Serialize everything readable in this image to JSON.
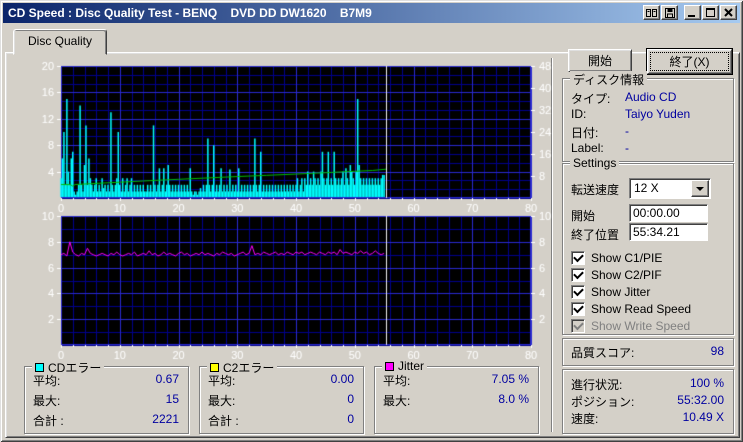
{
  "window": {
    "title": "CD Speed : Disc Quality Test - BENQ    DVD DD DW1620    B7M9"
  },
  "tab": {
    "label": "Disc Quality"
  },
  "buttons": {
    "start": "開始",
    "exit": "終了(X)"
  },
  "disc_info": {
    "title": "ディスク情報",
    "rows": [
      {
        "label": "タイプ:",
        "value": "Audio CD"
      },
      {
        "label": "ID:",
        "value": "Taiyo Yuden"
      },
      {
        "label": "日付:",
        "value": "-"
      },
      {
        "label": "Label:",
        "value": "-"
      }
    ]
  },
  "settings": {
    "title": "Settings",
    "speed_label": "転送速度",
    "speed_value": "12 X",
    "start_label": "開始",
    "start_value": "00:00.00",
    "end_label": "終了位置",
    "end_value": "55:34.21",
    "checkboxes": [
      {
        "label": "Show C1/PIE",
        "checked": true,
        "enabled": true
      },
      {
        "label": "Show C2/PIF",
        "checked": true,
        "enabled": true
      },
      {
        "label": "Show Jitter",
        "checked": true,
        "enabled": true
      },
      {
        "label": "Show Read Speed",
        "checked": true,
        "enabled": true
      },
      {
        "label": "Show Write Speed",
        "checked": true,
        "enabled": false
      }
    ]
  },
  "quality": {
    "label": "品質スコア:",
    "value": "98"
  },
  "progress": {
    "rows": [
      {
        "label": "進行状況:",
        "value": "100 %"
      },
      {
        "label": "ポジション:",
        "value": "55:32.00"
      },
      {
        "label": "速度:",
        "value": "10.49 X"
      }
    ]
  },
  "stats": [
    {
      "title": "CDエラー",
      "legend_color": "#00ffff",
      "rows": [
        [
          "平均:",
          "0.67"
        ],
        [
          "最大:",
          "15"
        ],
        [
          "合計 :",
          "2221"
        ]
      ]
    },
    {
      "title": "C2エラー",
      "legend_color": "#ffff00",
      "rows": [
        [
          "平均:",
          "0.00"
        ],
        [
          "最大:",
          "0"
        ],
        [
          "合計 :",
          "0"
        ]
      ]
    },
    {
      "title": "Jitter",
      "legend_color": "#ff00ff",
      "rows": [
        [
          "平均:",
          "7.05 %"
        ],
        [
          "最大:",
          "8.0 %"
        ]
      ]
    }
  ],
  "chart_data": [
    {
      "type": "bar",
      "title": "C1 errors (cyan bars, left axis) and read speed (green line, right axis)",
      "x_range": [
        0,
        80
      ],
      "x_major": 10,
      "x_minor": 2,
      "left_axis": {
        "range": [
          0,
          20
        ],
        "ticks": [
          4,
          8,
          12,
          16,
          20
        ],
        "minor_step": 1.3333
      },
      "right_axis": {
        "range": [
          0,
          48
        ],
        "ticks": [
          8,
          16,
          24,
          32,
          40,
          48
        ]
      },
      "cursor_x": 55.4,
      "grid": {
        "bg": "#000000",
        "major": "#2a2ad2",
        "minor": "#00008c",
        "text": "#ffffff",
        "cursor": "#f0f0f0"
      },
      "series": [
        {
          "name": "C1 errors",
          "color": "#00ffff",
          "axis": "left",
          "style": "bars",
          "x_start": 0,
          "x_step": 0.25,
          "values": [
            3,
            6,
            10,
            2,
            15,
            4,
            2,
            6,
            7,
            1,
            0.5,
            1,
            2,
            14,
            2,
            1,
            5,
            11,
            2,
            6,
            3,
            2,
            1,
            2,
            3,
            1,
            2,
            1,
            3,
            1.5,
            2,
            1,
            2,
            1,
            13,
            2,
            1,
            2,
            3,
            10,
            2,
            1,
            3,
            1,
            2,
            3,
            1,
            2,
            3,
            1,
            2,
            1,
            2,
            1,
            2,
            1,
            2,
            1,
            1,
            2,
            1,
            2,
            1,
            11,
            2,
            1,
            2,
            4.5,
            1,
            2,
            4.5,
            1,
            2,
            5,
            2,
            1,
            2,
            1,
            2,
            1,
            2,
            1,
            2,
            1,
            2,
            1,
            2,
            1,
            4.5,
            1,
            0.5,
            1,
            1,
            0.5,
            1,
            1.5,
            1,
            2,
            1,
            2,
            9,
            2,
            1,
            2,
            8,
            1,
            2,
            1,
            2,
            4.5,
            1,
            2,
            1,
            2,
            1,
            4.3,
            1,
            2,
            1,
            2,
            1,
            4.5,
            1,
            2,
            1,
            2,
            1,
            2,
            1,
            2,
            1,
            2,
            9,
            2,
            1,
            2,
            7,
            1,
            2,
            1,
            2,
            1,
            2,
            1,
            2,
            1,
            2,
            1,
            2,
            1,
            2,
            1,
            2,
            1,
            2,
            1,
            2,
            1,
            2,
            1,
            2,
            3,
            1,
            2,
            3,
            1,
            3,
            2,
            4,
            2,
            3,
            2,
            4,
            3,
            2,
            3,
            2,
            4,
            7,
            3,
            2,
            3,
            7,
            2,
            3,
            2,
            7,
            3,
            2,
            3,
            2,
            3,
            4,
            2,
            4.5,
            3,
            2,
            5,
            4,
            3,
            2,
            4,
            15,
            5,
            3,
            2,
            3,
            2,
            3,
            2,
            3,
            2,
            3,
            2,
            3,
            2,
            3,
            2,
            3,
            3.5,
            3.5
          ]
        },
        {
          "name": "Read speed",
          "color": "#00c000",
          "axis": "right",
          "style": "line",
          "points": [
            [
              0,
              4.9
            ],
            [
              1.6,
              4.85
            ],
            [
              2.0,
              4.3
            ],
            [
              2.4,
              4.9
            ],
            [
              5,
              5.2
            ],
            [
              10,
              5.75
            ],
            [
              15,
              6.3
            ],
            [
              20,
              6.8
            ],
            [
              25,
              7.3
            ],
            [
              30,
              7.8
            ],
            [
              35,
              8.25
            ],
            [
              40,
              8.7
            ],
            [
              45,
              9.2
            ],
            [
              50,
              9.7
            ],
            [
              53,
              10.0
            ],
            [
              55.4,
              10.49
            ]
          ]
        }
      ]
    },
    {
      "type": "line",
      "title": "Jitter (magenta line, %)",
      "x_range": [
        0,
        80
      ],
      "x_major": 10,
      "x_minor": 2,
      "left_axis": {
        "range": [
          0,
          10
        ],
        "ticks": [
          2,
          4,
          6,
          8,
          10
        ],
        "minor_step": 1
      },
      "right_axis": {
        "range": [
          0,
          10
        ],
        "ticks": [
          2,
          4,
          6,
          8,
          10
        ]
      },
      "cursor_x": 55.4,
      "grid": {
        "bg": "#000000",
        "major": "#2a2ad2",
        "minor": "#00008c",
        "text": "#ffffff",
        "cursor": "#f0f0f0"
      },
      "series": [
        {
          "name": "Jitter",
          "color": "#ff00ff",
          "axis": "left",
          "style": "line",
          "x_start": 0,
          "x_step": 0.5,
          "values": [
            7.0,
            7.1,
            6.9,
            8.0,
            7.2,
            7.0,
            6.9,
            7.1,
            7.0,
            7.5,
            7.1,
            7.0,
            6.9,
            7.0,
            7.1,
            7.0,
            6.9,
            7.1,
            7.0,
            7.2,
            7.0,
            6.9,
            7.0,
            7.1,
            7.0,
            7.2,
            6.9,
            7.0,
            7.1,
            7.0,
            7.3,
            7.0,
            7.1,
            6.9,
            7.0,
            7.2,
            7.0,
            7.1,
            7.0,
            6.9,
            7.1,
            7.2,
            7.0,
            7.1,
            6.9,
            7.0,
            7.1,
            7.0,
            7.2,
            7.0,
            7.1,
            7.0,
            6.9,
            7.1,
            7.0,
            7.2,
            7.1,
            7.0,
            7.1,
            6.9,
            7.0,
            7.1,
            7.2,
            7.0,
            7.1,
            7.7,
            7.0,
            7.1,
            7.0,
            7.2,
            7.1,
            7.0,
            7.1,
            7.2,
            7.0,
            7.1,
            7.0,
            7.2,
            7.1,
            7.0,
            7.2,
            7.1,
            7.2,
            7.0,
            7.1,
            7.2,
            7.1,
            7.0,
            7.2,
            7.1,
            7.0,
            7.2,
            7.1,
            7.2,
            7.0,
            7.4,
            7.1,
            7.2,
            7.1,
            7.0,
            7.2,
            7.1,
            7.3,
            7.1,
            7.2,
            7.0,
            7.1,
            7.3,
            7.1,
            7.0,
            7.1
          ]
        }
      ]
    }
  ]
}
